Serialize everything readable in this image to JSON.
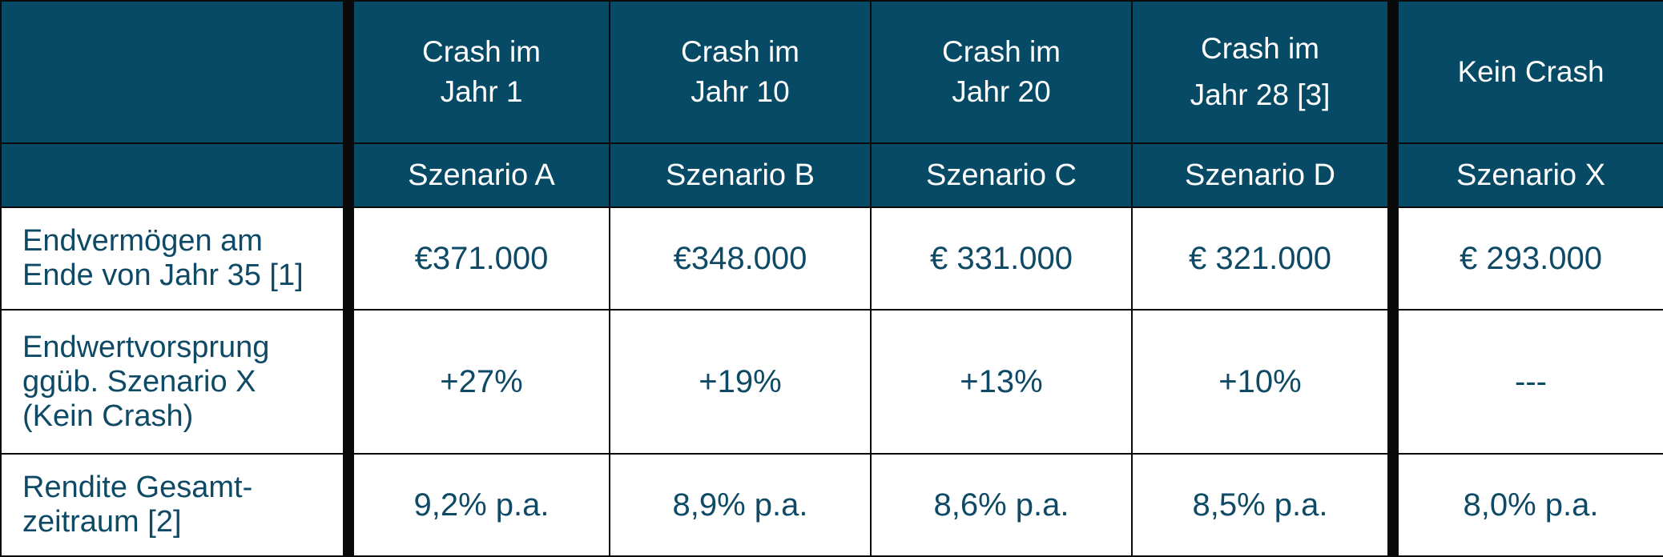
{
  "header": {
    "columns": [
      {
        "title_lines": [
          "Crash im",
          "Jahr 1"
        ],
        "scenario": "Szenario A"
      },
      {
        "title_lines": [
          "Crash im",
          "Jahr 10"
        ],
        "scenario": "Szenario B"
      },
      {
        "title_lines": [
          "Crash im",
          "Jahr 20"
        ],
        "scenario": "Szenario C"
      },
      {
        "title_lines": [
          "Crash im",
          "Jahr 28 [3]"
        ],
        "scenario": "Szenario D"
      },
      {
        "title_lines": [
          "Kein Crash"
        ],
        "scenario": "Szenario X"
      }
    ]
  },
  "rows": [
    {
      "label_lines": [
        "Endvermögen am",
        "Ende von Jahr 35 [1]"
      ],
      "values": [
        "€371.000",
        "€348.000",
        "€ 331.000",
        "€ 321.000",
        "€ 293.000"
      ]
    },
    {
      "label_lines": [
        "Endwertvorsprung",
        "ggüb. Szenario X",
        "(Kein Crash)"
      ],
      "values": [
        "+27%",
        "+19%",
        "+13%",
        "+10%",
        "---"
      ]
    },
    {
      "label_lines": [
        "Rendite Gesamt-",
        "zeitraum [2]"
      ],
      "values": [
        "9,2% p.a.",
        "8,9% p.a.",
        "8,6% p.a.",
        "8,5% p.a.",
        "8,0% p.a."
      ]
    }
  ],
  "colors": {
    "header_bg": "#064a66",
    "header_text": "#ffffff",
    "body_text": "#0e4a66",
    "grid": "#0a0a0a"
  }
}
